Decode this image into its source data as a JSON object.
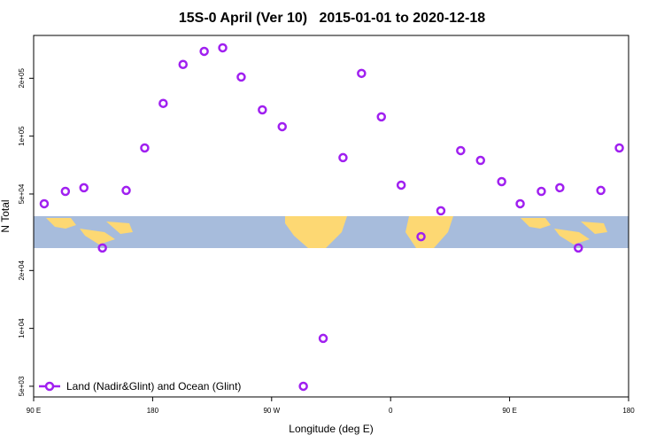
{
  "chart_data": {
    "type": "scatter",
    "title": "15S-0 April (Ver 10)   2015-01-01 to 2020-12-18",
    "x_label": "Longitude (deg E)",
    "y_label": "N Total",
    "ylog": true,
    "legend": "bottomleft",
    "xlim": [
      90,
      540
    ],
    "xticks": [
      {
        "value": 90,
        "label": "90 E"
      },
      {
        "value": 180,
        "label": "180"
      },
      {
        "value": 270,
        "label": "90 W"
      },
      {
        "value": 360,
        "label": "0"
      },
      {
        "value": 450,
        "label": "90 E"
      },
      {
        "value": 540,
        "label": "180"
      }
    ],
    "ylim": [
      4400,
      334000
    ],
    "yticks": [
      {
        "value": 5000,
        "label": "5e+03"
      },
      {
        "value": 10000,
        "label": "1e+04"
      },
      {
        "value": 20000,
        "label": "2e+04"
      },
      {
        "value": 50000,
        "label": "5e+04"
      },
      {
        "value": 100000,
        "label": "1e+05"
      },
      {
        "value": 200000,
        "label": "2e+05"
      }
    ],
    "series": [
      {
        "name": "Land (Nadir&Glint) and Ocean (Glint)",
        "color": "#a020f0",
        "x": [
          98,
          114,
          128,
          142,
          160,
          174,
          188,
          203,
          219,
          233,
          247,
          263,
          278,
          294,
          309,
          324,
          338,
          353,
          368,
          383,
          398,
          413,
          428,
          444,
          458,
          474,
          488,
          502,
          519,
          533
        ],
        "values": [
          44500,
          51600,
          53900,
          26200,
          52200,
          86800,
          148000,
          236000,
          276000,
          288000,
          203000,
          137000,
          112000,
          5000,
          8870,
          77300,
          212000,
          126000,
          55600,
          30000,
          40900,
          84100,
          74800,
          58000,
          44500,
          51600,
          53900,
          26200,
          52200,
          86800
        ]
      }
    ]
  }
}
